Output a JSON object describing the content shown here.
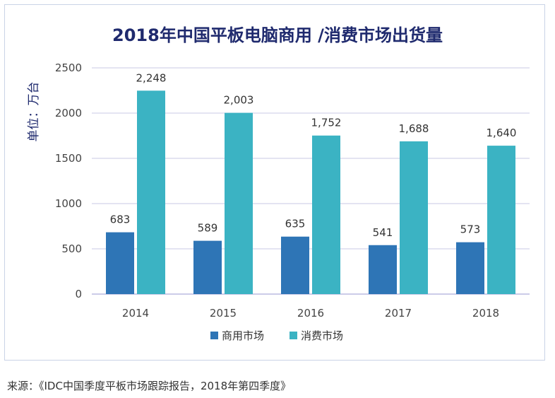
{
  "chart_data": {
    "type": "bar",
    "title": "2018年中国平板电脑商用 /消费市场出货量",
    "ylabel": "单位：万台",
    "xlabel": "",
    "categories": [
      "2014",
      "2015",
      "2016",
      "2017",
      "2018"
    ],
    "series": [
      {
        "name": "商用市场",
        "values": [
          683,
          589,
          635,
          541,
          573
        ],
        "labels": [
          "683",
          "589",
          "635",
          "541",
          "573"
        ],
        "color": "#2e75b6"
      },
      {
        "name": "消费市场",
        "values": [
          2248,
          2003,
          1752,
          1688,
          1640
        ],
        "labels": [
          "2,248",
          "2,003",
          "1,752",
          "1,688",
          "1,640"
        ],
        "color": "#3bb3c3"
      }
    ],
    "yticks": [
      0,
      500,
      1000,
      1500,
      2000,
      2500
    ],
    "ylim": [
      0,
      2500
    ],
    "grid": true,
    "legend_position": "bottom"
  },
  "source_note": "来源：《IDC中国季度平板市场跟踪报告，2018年第四季度》",
  "colors": {
    "title": "#1f2a6e",
    "axis_text": "#444444",
    "gridline": "#c9c9e6"
  }
}
